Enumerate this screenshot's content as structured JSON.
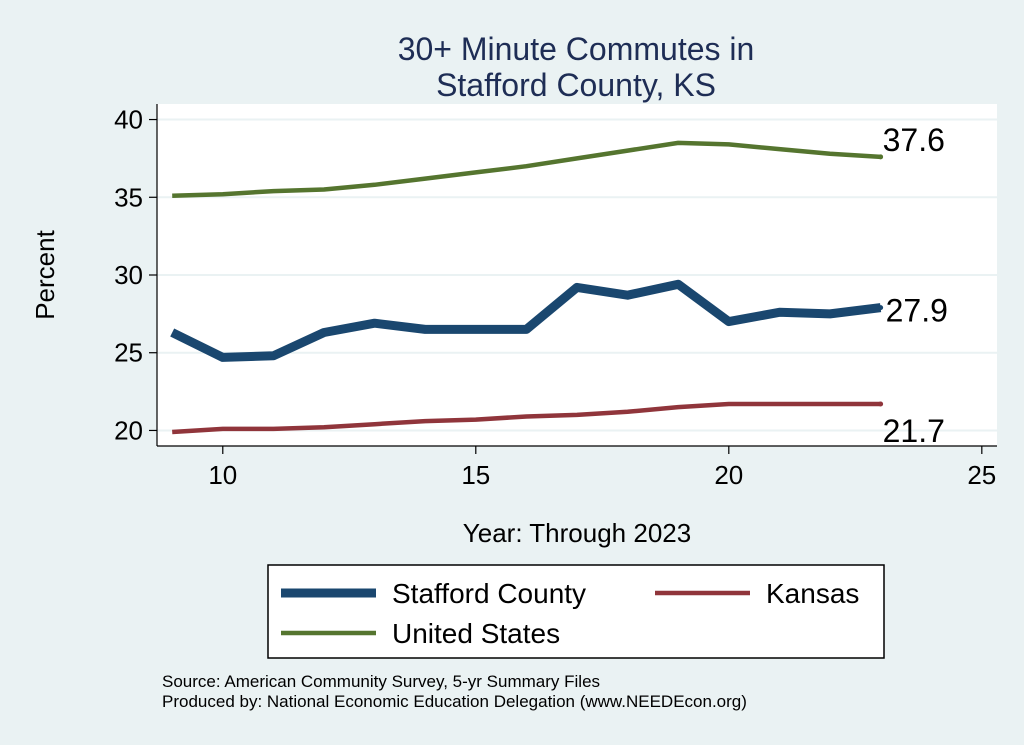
{
  "chart_data": {
    "type": "line",
    "title_lines": [
      "30+ Minute Commutes in",
      "Stafford County, KS"
    ],
    "xlabel": "Year: Through 2023",
    "ylabel": "Percent",
    "xlim": [
      8.7,
      25.3
    ],
    "ylim": [
      19,
      41
    ],
    "xticks": [
      10,
      15,
      20,
      25
    ],
    "yticks": [
      20,
      25,
      30,
      35,
      40
    ],
    "grid": true,
    "legend_position": "bottom",
    "series": [
      {
        "name": "Stafford County",
        "color": "#1a476f",
        "end_label": "27.9",
        "x": [
          9,
          10,
          11,
          12,
          13,
          14,
          15,
          16,
          17,
          18,
          19,
          20,
          21,
          22,
          23
        ],
        "y": [
          26.3,
          24.7,
          24.8,
          26.3,
          26.9,
          26.5,
          26.5,
          26.5,
          29.2,
          28.7,
          29.4,
          27.0,
          27.6,
          27.5,
          27.9
        ]
      },
      {
        "name": "Kansas",
        "color": "#90353b",
        "end_label": "21.7",
        "x": [
          9,
          10,
          11,
          12,
          13,
          14,
          15,
          16,
          17,
          18,
          19,
          20,
          21,
          22,
          23
        ],
        "y": [
          19.9,
          20.1,
          20.1,
          20.2,
          20.4,
          20.6,
          20.7,
          20.9,
          21.0,
          21.2,
          21.5,
          21.7,
          21.7,
          21.7,
          21.7
        ]
      },
      {
        "name": "United States",
        "color": "#55752f",
        "end_label": "37.6",
        "x": [
          9,
          10,
          11,
          12,
          13,
          14,
          15,
          16,
          17,
          18,
          19,
          20,
          21,
          22,
          23
        ],
        "y": [
          35.1,
          35.2,
          35.4,
          35.5,
          35.8,
          36.2,
          36.6,
          37.0,
          37.5,
          38.0,
          38.5,
          38.4,
          38.1,
          37.8,
          37.6
        ]
      }
    ],
    "source_lines": [
      "Source: American Community Survey, 5-yr Summary Files",
      "Produced by: National Economic Education Delegation (www.NEEDEcon.org)"
    ]
  }
}
